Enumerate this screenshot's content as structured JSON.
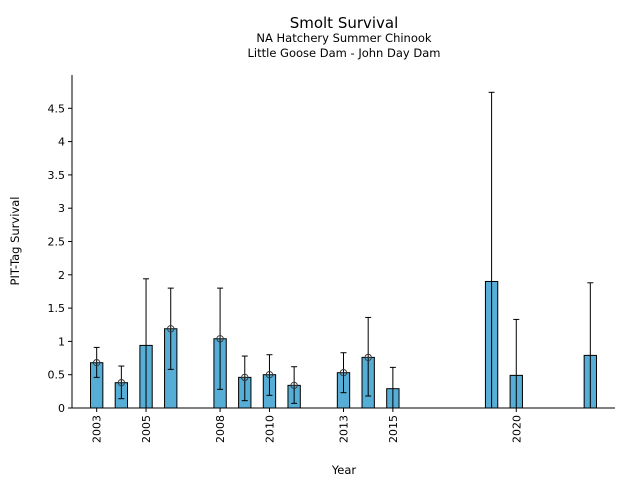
{
  "chart_data": {
    "type": "bar",
    "title": "Smolt Survival",
    "subtitle": [
      "NA Hatchery Summer Chinook",
      "Little Goose Dam - John Day Dam"
    ],
    "xlabel": "Year",
    "ylabel": "PIT-Tag Survival",
    "xlim": [
      2002,
      2024
    ],
    "ylim": [
      0,
      5
    ],
    "xticks": [
      2003,
      2005,
      2008,
      2010,
      2013,
      2015,
      2020
    ],
    "yticks": [
      0,
      0.5,
      1,
      1.5,
      2,
      2.5,
      3,
      3.5,
      4,
      4.5
    ],
    "grid": false,
    "bar_color": "#56add6",
    "points": [
      {
        "year": 2003,
        "value": 0.68,
        "lower": 0.46,
        "upper": 0.91,
        "marker": true
      },
      {
        "year": 2004,
        "value": 0.38,
        "lower": 0.14,
        "upper": 0.63,
        "marker": true
      },
      {
        "year": 2005,
        "value": 0.94,
        "lower": 0,
        "upper": 1.94,
        "marker": false
      },
      {
        "year": 2006,
        "value": 1.19,
        "lower": 0.58,
        "upper": 1.8,
        "marker": true
      },
      {
        "year": 2008,
        "value": 1.04,
        "lower": 0.28,
        "upper": 1.8,
        "marker": true
      },
      {
        "year": 2009,
        "value": 0.46,
        "lower": 0.11,
        "upper": 0.78,
        "marker": true
      },
      {
        "year": 2010,
        "value": 0.5,
        "lower": 0.19,
        "upper": 0.8,
        "marker": true
      },
      {
        "year": 2011,
        "value": 0.34,
        "lower": 0.07,
        "upper": 0.62,
        "marker": true
      },
      {
        "year": 2013,
        "value": 0.53,
        "lower": 0.23,
        "upper": 0.83,
        "marker": true
      },
      {
        "year": 2014,
        "value": 0.76,
        "lower": 0.18,
        "upper": 1.36,
        "marker": true
      },
      {
        "year": 2015,
        "value": 0.29,
        "lower": 0,
        "upper": 0.61,
        "marker": false
      },
      {
        "year": 2019,
        "value": 1.9,
        "lower": 0,
        "upper": 4.74,
        "marker": false
      },
      {
        "year": 2020,
        "value": 0.49,
        "lower": 0,
        "upper": 1.33,
        "marker": false
      },
      {
        "year": 2023,
        "value": 0.79,
        "lower": 0,
        "upper": 1.88,
        "marker": false
      }
    ]
  }
}
